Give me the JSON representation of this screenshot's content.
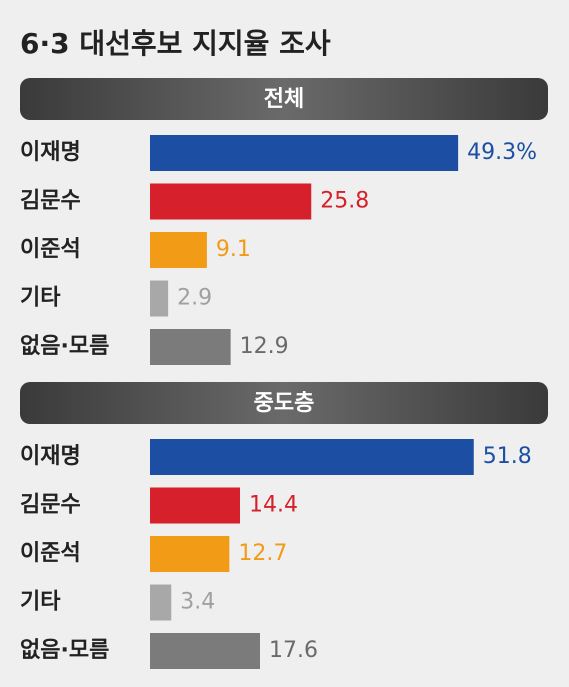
{
  "title": "6·3 대선후보 지지율 조사",
  "chart_data": [
    {
      "type": "bar",
      "title": "전체",
      "categories": [
        "이재명",
        "김문수",
        "이준석",
        "기타",
        "없음·모름"
      ],
      "values": [
        49.3,
        25.8,
        9.1,
        2.9,
        12.9
      ],
      "value_labels": [
        "49.3%",
        "25.8",
        "9.1",
        "2.9",
        "12.9"
      ],
      "colors": [
        "#1c4fa4",
        "#d6202b",
        "#f19b16",
        "#a8a8a8",
        "#7b7b7b"
      ],
      "label_colors": [
        "#1c4fa4",
        "#d6202b",
        "#f19b16",
        "#a0a0a0",
        "#6a6a6a"
      ]
    },
    {
      "type": "bar",
      "title": "중도층",
      "categories": [
        "이재명",
        "김문수",
        "이준석",
        "기타",
        "없음·모름"
      ],
      "values": [
        51.8,
        14.4,
        12.7,
        3.4,
        17.6
      ],
      "colors": [
        "#1c4fa4",
        "#d6202b",
        "#f19b16",
        "#a8a8a8",
        "#7b7b7b"
      ],
      "label_colors": [
        "#1c4fa4",
        "#d6202b",
        "#f19b16",
        "#a0a0a0",
        "#6a6a6a"
      ]
    }
  ]
}
